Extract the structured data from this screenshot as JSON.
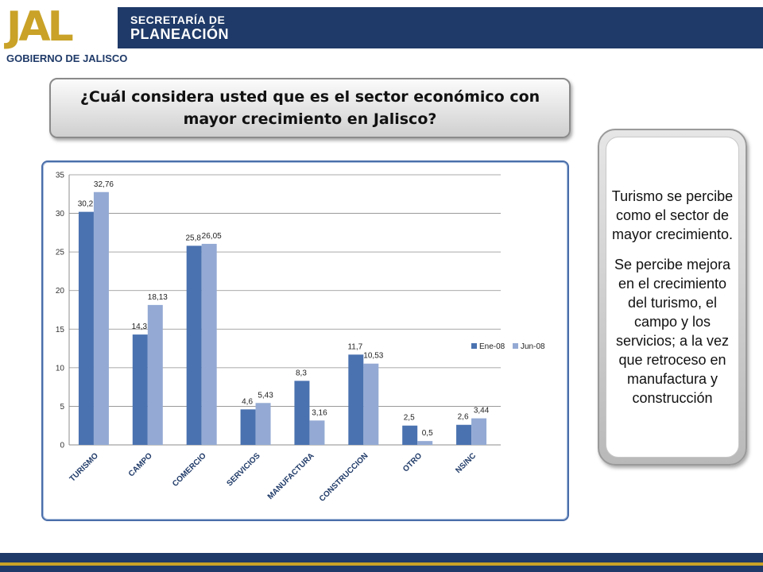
{
  "header": {
    "logo_mark": "JAL",
    "logo_caption": "GOBIERNO DE JALISCO",
    "dept_line1": "SECRETARÍA DE",
    "dept_line2": "PLANEACIÓN",
    "band_color": "#1f3a68",
    "accent_color": "#c9a227"
  },
  "question": "¿Cuál considera usted que es el sector económico con mayor crecimiento en Jalisco?",
  "notes": [
    "Turismo se percibe como el sector de mayor crecimiento.",
    "Se percibe mejora en el crecimiento del turismo, el campo y los servicios; a la vez que retroceso en manufactura y construcción"
  ],
  "chart_data": {
    "type": "bar",
    "categories": [
      "TURISMO",
      "CAMPO",
      "COMERCIO",
      "SERVICIOS",
      "MANUFACTURA",
      "CONSTRUCCION",
      "OTRO",
      "NS/NC"
    ],
    "series": [
      {
        "name": "Ene-08",
        "color": "#4a72b0",
        "values": [
          30.2,
          14.3,
          25.8,
          4.6,
          8.3,
          11.7,
          2.5,
          2.6
        ],
        "labels": [
          "30,2",
          "14,3",
          "25,8",
          "4,6",
          "8,3",
          "11,7",
          "2,5",
          "2,6"
        ]
      },
      {
        "name": "Jun-08",
        "color": "#94aad4",
        "values": [
          32.76,
          18.13,
          26.05,
          5.43,
          3.16,
          10.53,
          0.5,
          3.44
        ],
        "labels": [
          "32,76",
          "18,13",
          "26,05",
          "5,43",
          "3,16",
          "10,53",
          "0,5",
          "3,44"
        ]
      }
    ],
    "yticks": [
      0,
      5,
      10,
      15,
      20,
      25,
      30,
      35
    ],
    "ylim": [
      0,
      35
    ],
    "grid": true,
    "legend": "right"
  }
}
